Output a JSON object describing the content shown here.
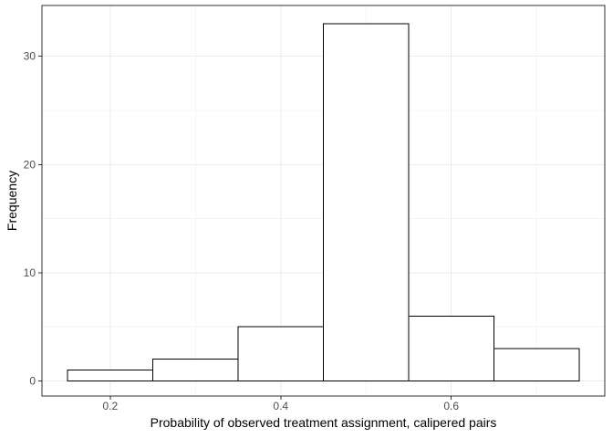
{
  "chart_data": {
    "type": "bar",
    "subtype": "histogram",
    "title": "",
    "xlabel": "Probability of observed treatment assignment, calipered pairs",
    "ylabel": "Frequency",
    "bin_edges": [
      0.15,
      0.25,
      0.35,
      0.45,
      0.55,
      0.65,
      0.75
    ],
    "counts": [
      1,
      2,
      5,
      33,
      6,
      3
    ],
    "x_ticks": {
      "values": [
        0.2,
        0.4,
        0.6
      ],
      "labels": [
        "0.2",
        "0.4",
        "0.6"
      ]
    },
    "y_ticks": {
      "values": [
        0,
        10,
        20,
        30
      ],
      "labels": [
        "0",
        "10",
        "20",
        "30"
      ]
    },
    "x_minor": [
      0.3,
      0.5,
      0.7
    ],
    "y_minor": [
      5,
      15,
      25
    ],
    "xlim": [
      0.12,
      0.78
    ],
    "ylim": [
      -1.4,
      34.7
    ],
    "grid": true,
    "legend": "none",
    "style": {
      "bar_fill": "#ffffff",
      "bar_stroke": "#000000",
      "panel_border": "#333333",
      "grid_major": "#ebebeb",
      "grid_minor": "#f4f4f4",
      "tick_color": "#333333",
      "tick_label_color": "#4d4d4d",
      "axis_title_color": "#000000",
      "background": "#ffffff"
    }
  }
}
